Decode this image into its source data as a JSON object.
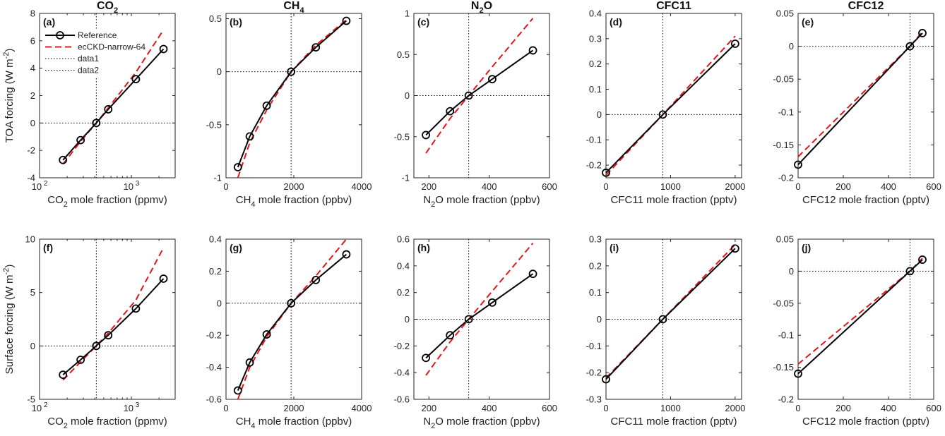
{
  "chart_data": [
    {
      "panel_label": "(a)",
      "title": "CO",
      "title_sub": "2",
      "title_tail": "",
      "type": "line",
      "xscale": "log",
      "xlabel": "CO",
      "xlabel_sub": "2",
      "xlabel_tail": " mole fraction (ppmv)",
      "ylabel": "TOA forcing (W m",
      "ylabel_sup": "-2",
      "ylabel_tail": ")",
      "xlim": [
        100,
        3000
      ],
      "ylim": [
        -4,
        8
      ],
      "yticks": [
        -4,
        -2,
        0,
        2,
        4,
        6,
        8
      ],
      "xticks": [
        100,
        1000
      ],
      "xtick_labels": [
        [
          "10",
          "2"
        ],
        [
          "10",
          "3"
        ]
      ],
      "vline": 415,
      "hline": 0,
      "series": [
        {
          "name": "Reference",
          "x": [
            180,
            280,
            415,
            560,
            1120,
            2240
          ],
          "y": [
            -2.7,
            -1.25,
            0,
            1.0,
            3.2,
            5.4
          ]
        },
        {
          "name": "ecCKD-narrow-64",
          "x": [
            180,
            280,
            415,
            560,
            1120,
            2240
          ],
          "y": [
            -3.0,
            -1.35,
            0,
            1.1,
            3.7,
            6.8
          ]
        }
      ]
    },
    {
      "panel_label": "(b)",
      "title": "CH",
      "title_sub": "4",
      "title_tail": "",
      "type": "line",
      "xscale": "linear",
      "xlabel": "CH",
      "xlabel_sub": "4",
      "xlabel_tail": " mole fraction (ppbv)",
      "ylabel": "",
      "ylabel_sup": "",
      "ylabel_tail": "",
      "xlim": [
        0,
        4000
      ],
      "ylim": [
        -1,
        0.55
      ],
      "yticks": [
        -1,
        -0.5,
        0,
        0.5
      ],
      "ytick_labels": [
        "-1",
        "-0.5",
        "0",
        "0.5"
      ],
      "xticks": [
        0,
        2000,
        4000
      ],
      "vline": 1920,
      "hline": 0,
      "series": [
        {
          "name": "Reference",
          "x": [
            350,
            700,
            1200,
            1920,
            2650,
            3550
          ],
          "y": [
            -0.9,
            -0.61,
            -0.32,
            0,
            0.23,
            0.48
          ]
        },
        {
          "name": "ecCKD-narrow-64",
          "x": [
            350,
            700,
            1200,
            1920,
            2650,
            3550
          ],
          "y": [
            -1.0,
            -0.67,
            -0.36,
            0,
            0.25,
            0.49
          ]
        }
      ]
    },
    {
      "panel_label": "(c)",
      "title": "N",
      "title_sub": "2",
      "title_tail": "O",
      "type": "line",
      "xscale": "linear",
      "xlabel": "N",
      "xlabel_sub": "2",
      "xlabel_tail": "O mole fraction (ppbv)",
      "ylabel": "",
      "ylabel_sup": "",
      "ylabel_tail": "",
      "xlim": [
        150,
        600
      ],
      "ylim": [
        -1,
        1
      ],
      "yticks": [
        -1,
        -0.5,
        0,
        0.5,
        1
      ],
      "ytick_labels": [
        "-1",
        "-0.5",
        "0",
        "0.5",
        "1"
      ],
      "xticks": [
        200,
        400,
        600
      ],
      "vline": 332,
      "hline": 0,
      "series": [
        {
          "name": "Reference",
          "x": [
            190,
            270,
            332,
            410,
            545
          ],
          "y": [
            -0.48,
            -0.19,
            0,
            0.2,
            0.55
          ]
        },
        {
          "name": "ecCKD-narrow-64",
          "x": [
            190,
            270,
            332,
            410,
            545
          ],
          "y": [
            -0.7,
            -0.28,
            0,
            0.35,
            0.94
          ]
        }
      ]
    },
    {
      "panel_label": "(d)",
      "title": "CFC11",
      "title_sub": "",
      "title_tail": "",
      "type": "line",
      "xscale": "linear",
      "xlabel": "CFC11 mole fraction (pptv)",
      "xlabel_sub": "",
      "xlabel_tail": "",
      "ylabel": "",
      "ylabel_sup": "",
      "ylabel_tail": "",
      "xlim": [
        0,
        2100
      ],
      "ylim": [
        -0.25,
        0.4
      ],
      "yticks": [
        -0.2,
        -0.1,
        0,
        0.1,
        0.2,
        0.3,
        0.4
      ],
      "ytick_labels": [
        "-0.2",
        "-0.1",
        "0",
        "0.1",
        "0.2",
        "0.3",
        "0.4"
      ],
      "xticks": [
        0,
        1000,
        2000
      ],
      "vline": 880,
      "hline": 0,
      "series": [
        {
          "name": "Reference",
          "x": [
            0,
            880,
            2000
          ],
          "y": [
            -0.23,
            0,
            0.28
          ]
        },
        {
          "name": "ecCKD-narrow-64",
          "x": [
            0,
            880,
            2000
          ],
          "y": [
            -0.24,
            0,
            0.31
          ]
        }
      ]
    },
    {
      "panel_label": "(e)",
      "title": "CFC12",
      "title_sub": "",
      "title_tail": "",
      "type": "line",
      "xscale": "linear",
      "xlabel": "CFC12 mole fraction (pptv)",
      "xlabel_sub": "",
      "xlabel_tail": "",
      "ylabel": "",
      "ylabel_sup": "",
      "ylabel_tail": "",
      "xlim": [
        0,
        600
      ],
      "ylim": [
        -0.2,
        0.05
      ],
      "yticks": [
        -0.2,
        -0.15,
        -0.1,
        -0.05,
        0,
        0.05
      ],
      "ytick_labels": [
        "-0.2",
        "-0.15",
        "-0.1",
        "-0.05",
        "0",
        "0.05"
      ],
      "xticks": [
        0,
        200,
        400,
        600
      ],
      "vline": 495,
      "hline": 0,
      "series": [
        {
          "name": "Reference",
          "x": [
            0,
            495,
            550
          ],
          "y": [
            -0.18,
            0,
            0.02
          ]
        },
        {
          "name": "ecCKD-narrow-64",
          "x": [
            0,
            495,
            550
          ],
          "y": [
            -0.168,
            0,
            0.022
          ]
        }
      ]
    },
    {
      "panel_label": "(f)",
      "title": "",
      "title_sub": "",
      "title_tail": "",
      "type": "line",
      "xscale": "log",
      "xlabel": "CO",
      "xlabel_sub": "2",
      "xlabel_tail": " mole fraction (ppmv)",
      "ylabel": "Surface forcing (W m",
      "ylabel_sup": "-2",
      "ylabel_tail": ")",
      "xlim": [
        100,
        3000
      ],
      "ylim": [
        -5,
        10
      ],
      "yticks": [
        -5,
        0,
        5,
        10
      ],
      "xticks": [
        100,
        1000
      ],
      "xtick_labels": [
        [
          "10",
          "2"
        ],
        [
          "10",
          "3"
        ]
      ],
      "vline": 415,
      "hline": 0,
      "series": [
        {
          "name": "Reference",
          "x": [
            180,
            280,
            415,
            560,
            1120,
            2240
          ],
          "y": [
            -2.7,
            -1.3,
            0,
            1.0,
            3.5,
            6.3
          ]
        },
        {
          "name": "ecCKD-narrow-64",
          "x": [
            180,
            280,
            415,
            560,
            1120,
            2240
          ],
          "y": [
            -3.2,
            -1.5,
            0,
            1.2,
            4.3,
            9.2
          ]
        }
      ]
    },
    {
      "panel_label": "(g)",
      "title": "",
      "title_sub": "",
      "title_tail": "",
      "type": "line",
      "xscale": "linear",
      "xlabel": "CH",
      "xlabel_sub": "4",
      "xlabel_tail": " mole fraction (ppbv)",
      "ylabel": "",
      "ylabel_sup": "",
      "ylabel_tail": "",
      "xlim": [
        0,
        4000
      ],
      "ylim": [
        -0.6,
        0.4
      ],
      "yticks": [
        -0.6,
        -0.4,
        -0.2,
        0,
        0.2,
        0.4
      ],
      "ytick_labels": [
        "-0.6",
        "-0.4",
        "-0.2",
        "0",
        "0.2",
        "0.4"
      ],
      "xticks": [
        0,
        2000,
        4000
      ],
      "vline": 1920,
      "hline": 0,
      "series": [
        {
          "name": "Reference",
          "x": [
            350,
            700,
            1200,
            1920,
            2650,
            3550
          ],
          "y": [
            -0.545,
            -0.37,
            -0.195,
            0,
            0.145,
            0.305
          ]
        },
        {
          "name": "ecCKD-narrow-64",
          "x": [
            350,
            700,
            1200,
            1920,
            2650,
            3550
          ],
          "y": [
            -0.6,
            -0.4,
            -0.21,
            0,
            0.17,
            0.4
          ]
        }
      ]
    },
    {
      "panel_label": "(h)",
      "title": "",
      "title_sub": "",
      "title_tail": "",
      "type": "line",
      "xscale": "linear",
      "xlabel": "N",
      "xlabel_sub": "2",
      "xlabel_tail": "O mole fraction (ppbv)",
      "ylabel": "",
      "ylabel_sup": "",
      "ylabel_tail": "",
      "xlim": [
        150,
        600
      ],
      "ylim": [
        -0.6,
        0.6
      ],
      "yticks": [
        -0.6,
        -0.4,
        -0.2,
        0,
        0.2,
        0.4,
        0.6
      ],
      "ytick_labels": [
        "-0.6",
        "-0.4",
        "-0.2",
        "0",
        "0.2",
        "0.4",
        "0.6"
      ],
      "xticks": [
        200,
        400,
        600
      ],
      "vline": 332,
      "hline": 0,
      "series": [
        {
          "name": "Reference",
          "x": [
            190,
            270,
            332,
            410,
            545
          ],
          "y": [
            -0.29,
            -0.12,
            0,
            0.125,
            0.34
          ]
        },
        {
          "name": "ecCKD-narrow-64",
          "x": [
            190,
            270,
            332,
            410,
            545
          ],
          "y": [
            -0.42,
            -0.17,
            0,
            0.21,
            0.57
          ]
        }
      ]
    },
    {
      "panel_label": "(i)",
      "title": "",
      "title_sub": "",
      "title_tail": "",
      "type": "line",
      "xscale": "linear",
      "xlabel": "CFC11 mole fraction (pptv)",
      "xlabel_sub": "",
      "xlabel_tail": "",
      "ylabel": "",
      "ylabel_sup": "",
      "ylabel_tail": "",
      "xlim": [
        0,
        2100
      ],
      "ylim": [
        -0.3,
        0.3
      ],
      "yticks": [
        -0.3,
        -0.2,
        -0.1,
        0,
        0.1,
        0.2,
        0.3
      ],
      "ytick_labels": [
        "-0.3",
        "-0.2",
        "-0.1",
        "0",
        "0.1",
        "0.2",
        "0.3"
      ],
      "xticks": [
        0,
        1000,
        2000
      ],
      "vline": 880,
      "hline": 0,
      "series": [
        {
          "name": "Reference",
          "x": [
            0,
            880,
            2000
          ],
          "y": [
            -0.225,
            0,
            0.265
          ]
        },
        {
          "name": "ecCKD-narrow-64",
          "x": [
            0,
            880,
            2000
          ],
          "y": [
            -0.22,
            0,
            0.28
          ]
        }
      ]
    },
    {
      "panel_label": "(j)",
      "title": "",
      "title_sub": "",
      "title_tail": "",
      "type": "line",
      "xscale": "linear",
      "xlabel": "CFC12 mole fraction (pptv)",
      "xlabel_sub": "",
      "xlabel_tail": "",
      "ylabel": "",
      "ylabel_sup": "",
      "ylabel_tail": "",
      "xlim": [
        0,
        600
      ],
      "ylim": [
        -0.2,
        0.05
      ],
      "yticks": [
        -0.2,
        -0.15,
        -0.1,
        -0.05,
        0,
        0.05
      ],
      "ytick_labels": [
        "-0.2",
        "-0.15",
        "-0.1",
        "-0.05",
        "0",
        "0.05"
      ],
      "xticks": [
        0,
        200,
        400,
        600
      ],
      "vline": 495,
      "hline": 0,
      "series": [
        {
          "name": "Reference",
          "x": [
            0,
            495,
            550
          ],
          "y": [
            -0.16,
            0,
            0.018
          ]
        },
        {
          "name": "ecCKD-narrow-64",
          "x": [
            0,
            495,
            550
          ],
          "y": [
            -0.145,
            0,
            0.02
          ]
        }
      ]
    }
  ],
  "legend": {
    "placement": "top-left of panel (a)",
    "entries": [
      "Reference",
      "ecCKD-narrow-64",
      "data1",
      "data2"
    ]
  },
  "colors": {
    "reference": "#000000",
    "ecckd": "#e8141b",
    "guides": "#000000"
  }
}
